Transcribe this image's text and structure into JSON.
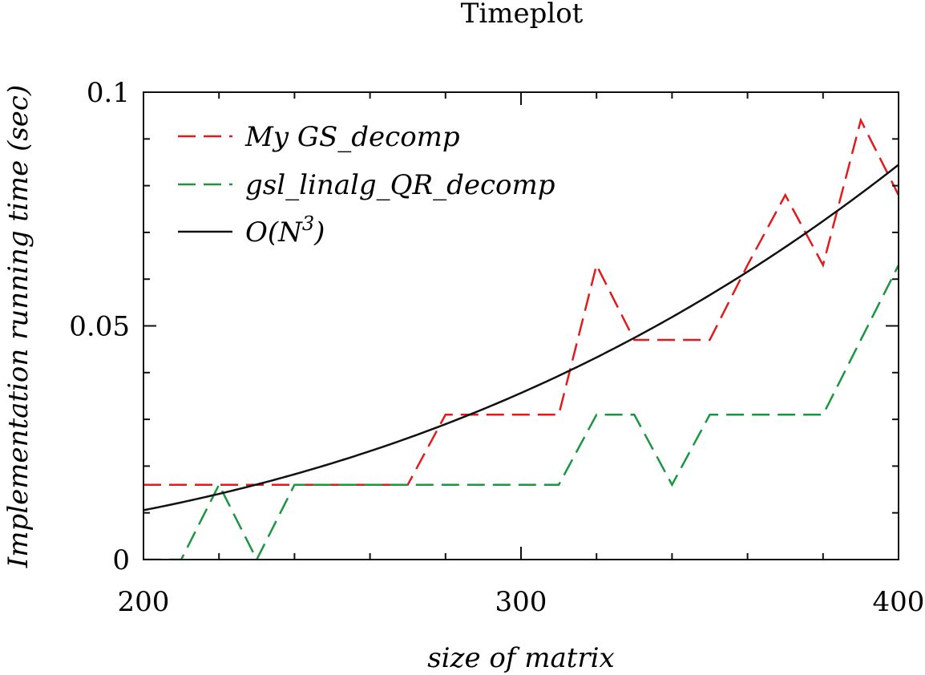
{
  "chart_data": {
    "type": "line",
    "title": "Timeplot",
    "xlabel": "size of matrix",
    "ylabel": "Implementation running time (sec)",
    "xlim": [
      200,
      400
    ],
    "ylim": [
      0,
      0.1
    ],
    "x_ticks": [
      200,
      300,
      400
    ],
    "x_tick_labels": [
      "200",
      "300",
      "400"
    ],
    "y_ticks": [
      0,
      0.05,
      0.1
    ],
    "y_tick_labels": [
      "0",
      "0.05",
      "0.1"
    ],
    "grid": false,
    "legend_position": "top-left",
    "series": [
      {
        "name": "My GS_decomp",
        "color": "#e31a1c",
        "dash": "dashed",
        "x": [
          200,
          210,
          220,
          230,
          240,
          250,
          260,
          270,
          280,
          290,
          300,
          310,
          320,
          330,
          340,
          350,
          360,
          370,
          380,
          390,
          400
        ],
        "y": [
          0.016,
          0.016,
          0.016,
          0.016,
          0.016,
          0.016,
          0.016,
          0.016,
          0.031,
          0.031,
          0.031,
          0.031,
          0.063,
          0.047,
          0.047,
          0.047,
          0.063,
          0.078,
          0.063,
          0.094,
          0.078
        ]
      },
      {
        "name": "gsl_linalg_QR_decomp",
        "color": "#1a9641",
        "dash": "dashed",
        "x": [
          200,
          210,
          220,
          230,
          240,
          250,
          260,
          270,
          280,
          290,
          300,
          310,
          320,
          330,
          340,
          350,
          360,
          370,
          380,
          390,
          400
        ],
        "y": [
          0,
          0,
          0.016,
          0,
          0.016,
          0.016,
          0.016,
          0.016,
          0.016,
          0.016,
          0.016,
          0.016,
          0.031,
          0.031,
          0.016,
          0.031,
          0.031,
          0.031,
          0.031,
          0.047,
          0.063
        ]
      },
      {
        "name_parts": [
          "O(N",
          "3",
          ")"
        ],
        "color": "#111111",
        "dash": "solid",
        "function": "cubic",
        "coef": 1.32e-09
      }
    ]
  }
}
